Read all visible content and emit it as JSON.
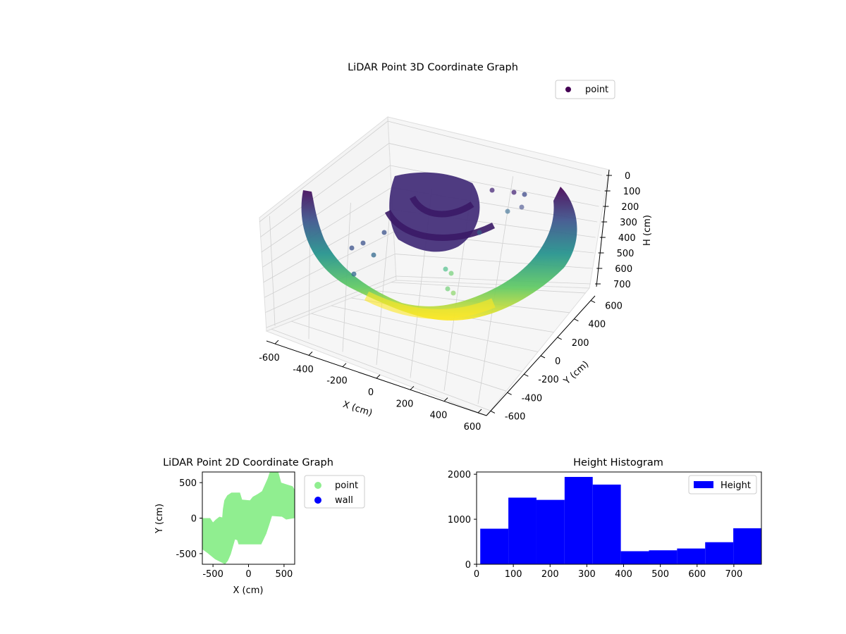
{
  "chart_data": [
    {
      "type": "scatter3d",
      "title": "LiDAR Point 3D Coordinate Graph",
      "xlabel": "X (cm)",
      "ylabel": "Y (cm)",
      "zlabel": "H (cm)",
      "xlim": [
        -650,
        650
      ],
      "ylim": [
        -650,
        650
      ],
      "zlim": [
        0,
        775
      ],
      "z_inverted": true,
      "xticks": [
        -600,
        -400,
        -200,
        0,
        200,
        400,
        600
      ],
      "yticks": [
        -600,
        -400,
        -200,
        0,
        200,
        400,
        600
      ],
      "zticks": [
        0,
        100,
        200,
        300,
        400,
        500,
        600,
        700
      ],
      "grid": true,
      "colormap": "viridis",
      "legend": {
        "entries": [
          "point"
        ],
        "placement": "top-right"
      }
    },
    {
      "type": "scatter",
      "title": "LiDAR Point 2D Coordinate Graph",
      "xlabel": "X (cm)",
      "ylabel": "Y (cm)",
      "xlim": [
        -650,
        650
      ],
      "ylim": [
        -650,
        650
      ],
      "xticks": [
        -500,
        0,
        500
      ],
      "yticks": [
        -500,
        0,
        500
      ],
      "series": [
        {
          "name": "point",
          "color": "#90ee90"
        },
        {
          "name": "wall",
          "color": "#0000ff"
        }
      ],
      "outline": [
        [
          -650,
          0
        ],
        [
          -540,
          0
        ],
        [
          -500,
          -60
        ],
        [
          -460,
          -20
        ],
        [
          -410,
          20
        ],
        [
          -370,
          10
        ],
        [
          -360,
          130
        ],
        [
          -340,
          250
        ],
        [
          -300,
          320
        ],
        [
          -240,
          360
        ],
        [
          -120,
          360
        ],
        [
          -90,
          260
        ],
        [
          20,
          250
        ],
        [
          60,
          300
        ],
        [
          130,
          340
        ],
        [
          190,
          380
        ],
        [
          230,
          470
        ],
        [
          270,
          560
        ],
        [
          300,
          650
        ],
        [
          420,
          650
        ],
        [
          460,
          500
        ],
        [
          520,
          480
        ],
        [
          620,
          450
        ],
        [
          650,
          400
        ],
        [
          650,
          0
        ],
        [
          530,
          -20
        ],
        [
          470,
          20
        ],
        [
          330,
          30
        ],
        [
          290,
          -100
        ],
        [
          250,
          -220
        ],
        [
          180,
          -370
        ],
        [
          -140,
          -370
        ],
        [
          -160,
          -310
        ],
        [
          -190,
          -300
        ],
        [
          -250,
          -510
        ],
        [
          -290,
          -600
        ],
        [
          -330,
          -650
        ],
        [
          -470,
          -580
        ],
        [
          -580,
          -490
        ],
        [
          -650,
          -440
        ]
      ],
      "legend": {
        "entries": [
          "point",
          "wall"
        ],
        "placement": "outside-right"
      }
    },
    {
      "type": "bar",
      "title": "Height Histogram",
      "xlabel": "",
      "ylabel": "",
      "xlim": [
        0,
        775
      ],
      "ylim": [
        0,
        2050
      ],
      "xticks": [
        0,
        100,
        200,
        300,
        400,
        500,
        600,
        700
      ],
      "yticks": [
        0,
        1000,
        2000
      ],
      "bin_edges": [
        10,
        86.5,
        163,
        239.5,
        316,
        392.5,
        469,
        545.5,
        622,
        698.5,
        775
      ],
      "counts": [
        790,
        1480,
        1430,
        1940,
        1770,
        290,
        310,
        350,
        490,
        800
      ],
      "color": "#0000ff",
      "series": [
        {
          "name": "Height"
        }
      ],
      "legend": {
        "entries": [
          "Height"
        ],
        "placement": "top-right"
      }
    }
  ]
}
